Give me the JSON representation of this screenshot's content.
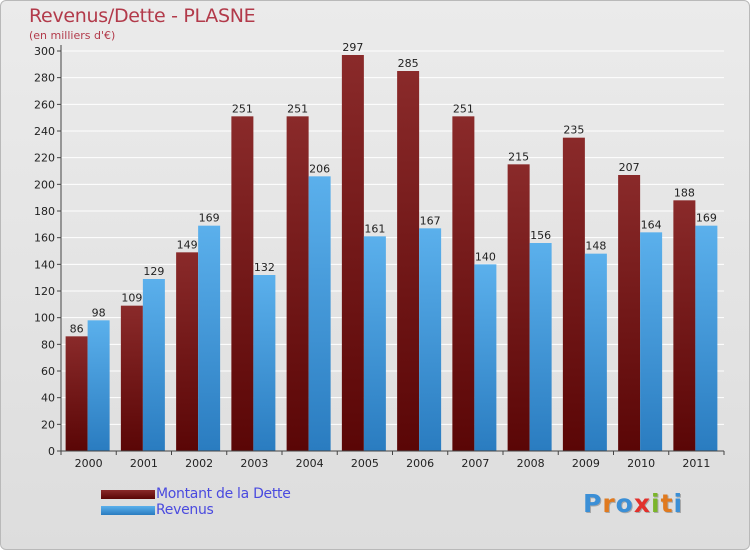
{
  "title": "Revenus/Dette - PLASNE",
  "subtitle": "(en milliers d'€)",
  "chart_data": {
    "type": "bar",
    "title": "Revenus/Dette - PLASNE",
    "ylabel": "(en milliers d'€)",
    "xlabel": "",
    "categories": [
      "2000",
      "2001",
      "2002",
      "2003",
      "2004",
      "2005",
      "2006",
      "2007",
      "2008",
      "2009",
      "2010",
      "2011"
    ],
    "series": [
      {
        "name": "Montant de la Dette",
        "color": "#6b1010",
        "values": [
          86,
          109,
          149,
          251,
          251,
          297,
          285,
          251,
          215,
          235,
          207,
          188
        ]
      },
      {
        "name": "Revenus",
        "color": "#3a9ce0",
        "values": [
          98,
          129,
          169,
          132,
          206,
          161,
          167,
          140,
          156,
          148,
          164,
          169
        ]
      }
    ],
    "ylim": [
      0,
      300
    ],
    "yticks": [
      0,
      20,
      40,
      60,
      80,
      100,
      120,
      140,
      160,
      180,
      200,
      220,
      240,
      260,
      280,
      300
    ],
    "grid": true,
    "legend": "bottom-left"
  },
  "legend": {
    "items": [
      {
        "label": "Montant de la Dette",
        "color": "#6b1010"
      },
      {
        "label": "Revenus",
        "color": "#3a9ce0"
      }
    ]
  },
  "logo": {
    "text": "Proxiti",
    "colors": [
      "#3b8fd6",
      "#e07a1f",
      "#3b8fd6",
      "#e2302b",
      "#7bb52a",
      "#e07a1f",
      "#3b8fd6"
    ]
  }
}
